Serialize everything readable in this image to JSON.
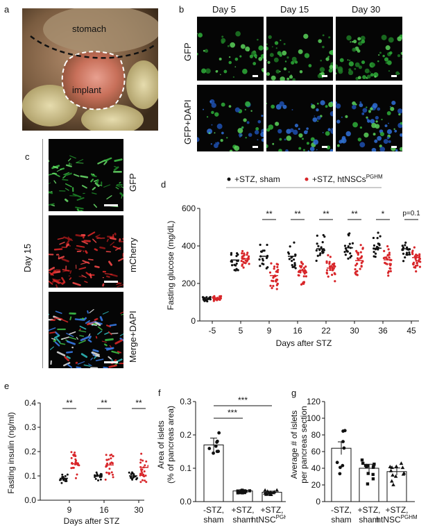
{
  "panels": {
    "a": {
      "letter": "a",
      "labels": [
        "stomach",
        "implant"
      ]
    },
    "b": {
      "letter": "b",
      "columns": [
        "Day 5",
        "Day 15",
        "Day 30"
      ],
      "rows": [
        "GFP",
        "GFP+DAPI"
      ]
    },
    "c": {
      "letter": "c",
      "side_label": "Day 15",
      "rows": [
        "GFP",
        "mCherry",
        "Merge+DAPI"
      ]
    }
  },
  "chart_data": [
    {
      "panel": "d",
      "type": "scatter",
      "ylabel": "Fasting glucose (mg/dL)",
      "xlabel": "Days after STZ",
      "categories": [
        "-5",
        "5",
        "9",
        "16",
        "22",
        "30",
        "36",
        "45"
      ],
      "ylim": [
        0,
        600
      ],
      "yticks": [
        0,
        200,
        400,
        600
      ],
      "legend": {
        "sham": "+STZ, sham",
        "htnsc": "+STZ, htNSCs",
        "htnsc_sup": "PGHM"
      },
      "series": [
        {
          "name": "+STZ, sham",
          "color": "#111111",
          "means": [
            118,
            325,
            345,
            345,
            385,
            390,
            388,
            385
          ]
        },
        {
          "name": "+STZ, htNSCs",
          "color": "#d8262a",
          "means": [
            120,
            332,
            242,
            268,
            282,
            322,
            326,
            338
          ]
        }
      ],
      "significance": [
        "",
        "",
        "**",
        "**",
        "**",
        "**",
        "*",
        "p=0.1"
      ]
    },
    {
      "panel": "e",
      "type": "scatter",
      "ylabel": "Fasting insulin (ng/ml)",
      "xlabel": "Days after STZ",
      "categories": [
        "9",
        "16",
        "30"
      ],
      "ylim": [
        0,
        0.4
      ],
      "yticks": [
        "0.0",
        "0.1",
        "0.2",
        "0.3",
        "0.4"
      ],
      "series": [
        {
          "color": "#111111",
          "means": [
            0.09,
            0.1,
            0.1
          ]
        },
        {
          "color": "#d8262a",
          "means": [
            0.15,
            0.145,
            0.135
          ]
        }
      ],
      "significance": [
        "**",
        "**",
        "**"
      ]
    },
    {
      "panel": "f",
      "type": "bar",
      "ylabel": "Area of islets (% of pancreas area)",
      "categories": [
        [
          "-STZ,",
          "sham"
        ],
        [
          "+STZ,",
          "sham"
        ],
        [
          "+STZ,",
          "htNSC",
          "PGHM"
        ]
      ],
      "values": [
        0.17,
        0.032,
        0.028
      ],
      "ylim": [
        0,
        0.3
      ],
      "yticks": [
        "0.0",
        "0.1",
        "0.2",
        "0.3"
      ],
      "markers": [
        "circle",
        "square",
        "triangle"
      ],
      "significance": [
        "***",
        "***"
      ]
    },
    {
      "panel": "g",
      "type": "bar",
      "ylabel": "Average # of islets per pancreas section",
      "categories": [
        [
          "-STZ,",
          "sham"
        ],
        [
          "+STZ,",
          "sham"
        ],
        [
          "+STZ,",
          "htNSC",
          "PGHM"
        ]
      ],
      "values": [
        64,
        40,
        36
      ],
      "ylim": [
        0,
        120
      ],
      "yticks": [
        "0",
        "20",
        "40",
        "60",
        "80",
        "100",
        "120"
      ],
      "markers": [
        "circle",
        "square",
        "triangle"
      ]
    }
  ]
}
